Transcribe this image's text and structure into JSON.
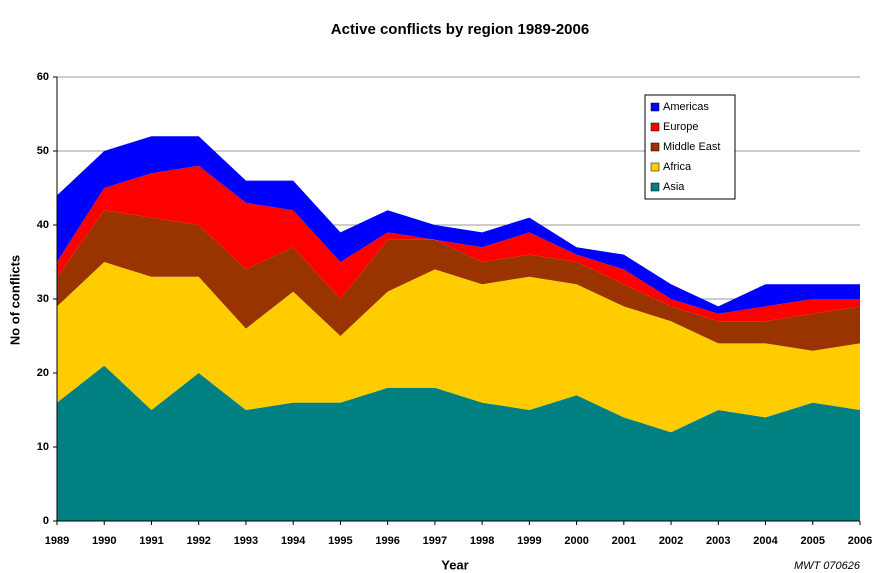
{
  "chart_data": {
    "type": "stacked_area",
    "title": "Active conflicts by region 1989-2006",
    "x_label": "Year",
    "y_label": "No of conflicts",
    "annotation": "MWT 070626",
    "categories": [
      "1989",
      "1990",
      "1991",
      "1992",
      "1993",
      "1994",
      "1995",
      "1996",
      "1997",
      "1998",
      "1999",
      "2000",
      "2001",
      "2002",
      "2003",
      "2004",
      "2005",
      "2006"
    ],
    "series": [
      {
        "name": "Asia",
        "color": "#008080",
        "values": [
          16,
          21,
          15,
          20,
          15,
          16,
          16,
          18,
          18,
          16,
          15,
          17,
          14,
          12,
          15,
          14,
          16,
          15
        ]
      },
      {
        "name": "Africa",
        "color": "#ffcc00",
        "values": [
          13,
          14,
          18,
          13,
          11,
          15,
          9,
          13,
          16,
          16,
          18,
          15,
          15,
          15,
          9,
          10,
          7,
          9
        ]
      },
      {
        "name": "Middle East",
        "color": "#993300",
        "values": [
          4,
          7,
          8,
          7,
          8,
          6,
          5,
          7,
          4,
          3,
          3,
          3,
          3,
          2,
          3,
          3,
          5,
          5
        ]
      },
      {
        "name": "Europe",
        "color": "#ff0000",
        "values": [
          2,
          3,
          6,
          8,
          9,
          5,
          5,
          1,
          0,
          2,
          3,
          1,
          2,
          1,
          1,
          2,
          2,
          1
        ]
      },
      {
        "name": "Americas",
        "color": "#0000ff",
        "values": [
          9,
          5,
          5,
          4,
          3,
          4,
          4,
          3,
          2,
          2,
          2,
          1,
          2,
          2,
          1,
          3,
          2,
          2
        ]
      }
    ],
    "ylim": [
      0,
      60
    ],
    "yticks": [
      0,
      10,
      20,
      30,
      40,
      50,
      60
    ],
    "grid": true,
    "legend": "upper right"
  }
}
